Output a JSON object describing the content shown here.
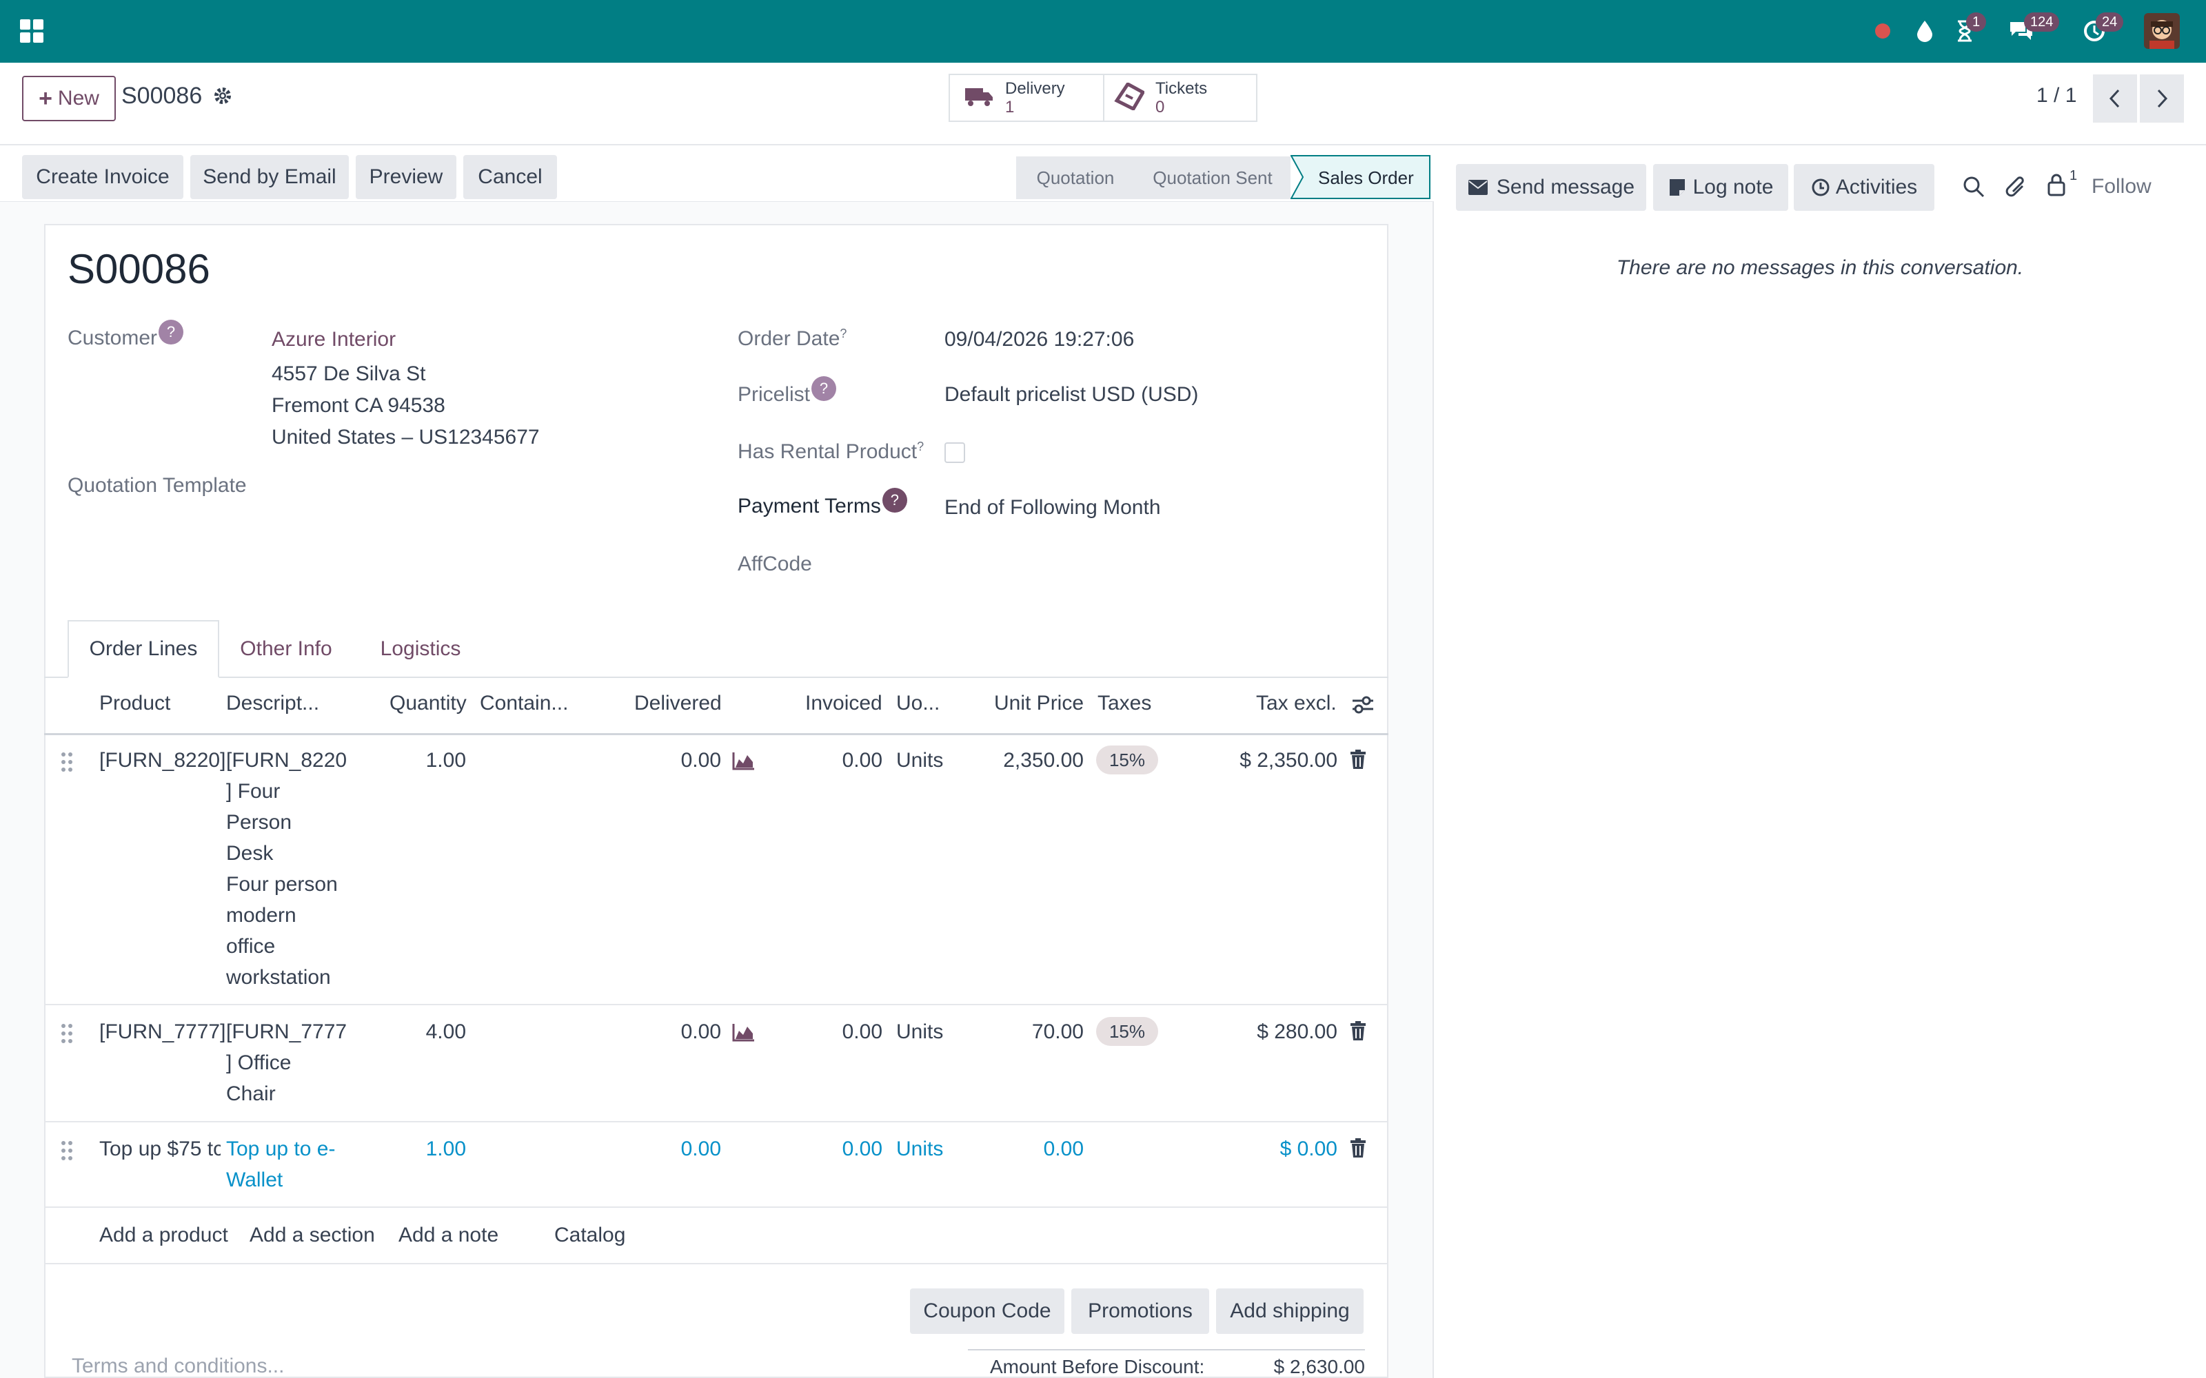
{
  "topbar": {
    "apps_icon": "grid-icon",
    "badges": {
      "activities": "1",
      "messages": "124",
      "updates": "24"
    }
  },
  "control": {
    "new_label": "New",
    "breadcrumb": "S00086",
    "smart_buttons": [
      {
        "label": "Delivery",
        "value": "1",
        "icon": "truck-icon"
      },
      {
        "label": "Tickets",
        "value": "0",
        "icon": "ticket-icon"
      }
    ],
    "pager": "1 / 1"
  },
  "actions": {
    "create_invoice": "Create Invoice",
    "send_email": "Send by Email",
    "preview": "Preview",
    "cancel": "Cancel"
  },
  "stages": [
    "Quotation",
    "Quotation Sent",
    "Sales Order"
  ],
  "chatter": {
    "send_message": "Send message",
    "log_note": "Log note",
    "activities": "Activities",
    "followers_count": "1",
    "follow": "Follow",
    "empty": "There are no messages in this conversation."
  },
  "form": {
    "name": "S00086",
    "customer_label": "Customer",
    "customer_name": "Azure Interior",
    "address": [
      "4557 De Silva St",
      "Fremont CA 94538",
      "United States – US12345677"
    ],
    "quotation_template_label": "Quotation Template",
    "order_date_label": "Order Date",
    "order_date": "09/04/2026 19:27:06",
    "pricelist_label": "Pricelist",
    "pricelist": "Default pricelist USD (USD)",
    "rental_label": "Has Rental Product",
    "payment_terms_label": "Payment Terms",
    "payment_terms": "End of Following Month",
    "affcode_label": "AffCode",
    "help": "?"
  },
  "tabs": [
    "Order Lines",
    "Other Info",
    "Logistics"
  ],
  "table": {
    "headers": [
      "Product",
      "Descript...",
      "Quantity",
      "Contain...",
      "Delivered",
      "Invoiced",
      "Uo...",
      "Unit Price",
      "Taxes",
      "Tax excl."
    ],
    "rows": [
      {
        "product": "[FURN_8220]",
        "description": [
          "[FURN_8220",
          "] Four",
          "Person",
          "Desk",
          "Four person",
          "modern",
          "office",
          "workstation"
        ],
        "quantity": "1.00",
        "delivered": "0.00",
        "invoiced": "0.00",
        "uom": "Units",
        "unit_price": "2,350.00",
        "tax": "15%",
        "subtotal": "$ 2,350.00"
      },
      {
        "product": "[FURN_7777]",
        "description": [
          "[FURN_7777",
          "] Office",
          "Chair"
        ],
        "quantity": "4.00",
        "delivered": "0.00",
        "invoiced": "0.00",
        "uom": "Units",
        "unit_price": "70.00",
        "tax": "15%",
        "subtotal": "$ 280.00"
      },
      {
        "product": "Top up $75 tc",
        "description": [
          "Top up to e-",
          "Wallet"
        ],
        "quantity": "1.00",
        "delivered": "0.00",
        "invoiced": "0.00",
        "uom": "Units",
        "unit_price": "0.00",
        "tax": "",
        "subtotal": "$ 0.00"
      }
    ],
    "add_product": "Add a product",
    "add_section": "Add a section",
    "add_note": "Add a note",
    "catalog": "Catalog"
  },
  "footer": {
    "coupon": "Coupon Code",
    "promotions": "Promotions",
    "shipping": "Add shipping",
    "terms_placeholder": "Terms and conditions...",
    "amount_label": "Amount Before Discount:",
    "amount_value": "$ 2,630.00"
  },
  "colors": {
    "topbar": "#017e84",
    "brand": "#714b67",
    "info": "#0891c9"
  }
}
